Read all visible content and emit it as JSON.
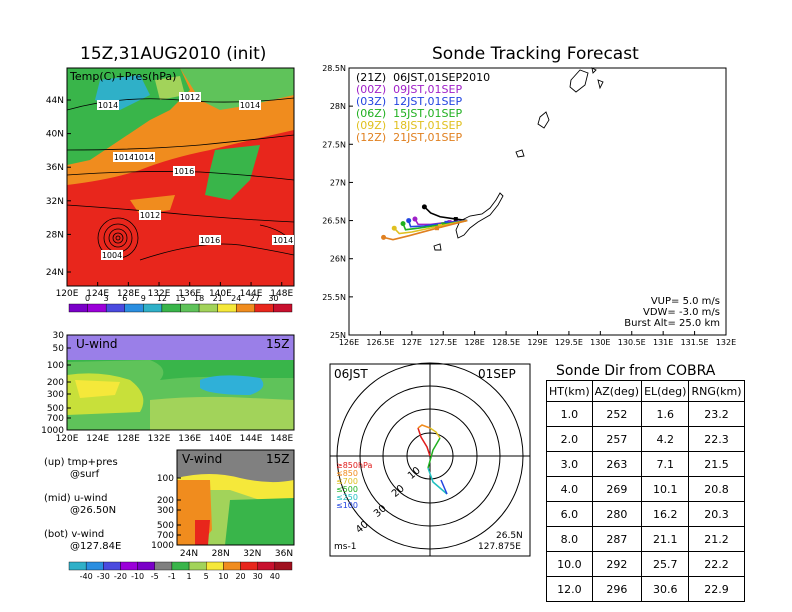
{
  "map_panel": {
    "title": "15Z,31AUG2010 (init)",
    "label": "Temp(C)+Pres(hPa)",
    "lat_ticks": [
      "44N",
      "40N",
      "36N",
      "32N",
      "28N",
      "24N"
    ],
    "lon_ticks": [
      "120E",
      "124E",
      "128E",
      "132E",
      "136E",
      "140E",
      "144E",
      "148E"
    ],
    "isobar_labels": [
      "1014",
      "1012",
      "1014",
      "1014",
      "1014",
      "1016",
      "1012",
      "1016",
      "1014",
      "1004"
    ],
    "colorbar_ticks": [
      "0",
      "3",
      "6",
      "9",
      "12",
      "15",
      "18",
      "21",
      "24",
      "27",
      "30"
    ],
    "colors": {
      "low": "#9b00d9",
      "mid": "#39b54a",
      "high": "#e8261c",
      "warm": "#f08c1e"
    }
  },
  "u_panel": {
    "label": "U-wind",
    "time": "15Z",
    "y_ticks": [
      "30",
      "50",
      "100",
      "200",
      "300",
      "500",
      "700",
      "1000"
    ],
    "x_ticks": [
      "120E",
      "124E",
      "128E",
      "132E",
      "136E",
      "140E",
      "144E",
      "148E"
    ]
  },
  "v_panel": {
    "label": "V-wind",
    "time": "15Z",
    "y_ticks": [
      "100",
      "200",
      "300",
      "500",
      "700",
      "1000"
    ],
    "x_ticks": [
      "24N",
      "28N",
      "32N",
      "36N"
    ],
    "colorbar_ticks": [
      "-40",
      "-30",
      "-20",
      "-10",
      "-5",
      "-1",
      "1",
      "5",
      "10",
      "20",
      "30",
      "40"
    ]
  },
  "notes": {
    "up_1": "(up) tmp+pres",
    "up_2": "@surf",
    "mid_1": "(mid) u-wind",
    "mid_2": "@26.50N",
    "bot_1": "(bot) v-wind",
    "bot_2": "@127.84E"
  },
  "track_panel": {
    "title": "Sonde Tracking Forecast",
    "y_ticks": [
      "28.5N",
      "28N",
      "27.5N",
      "27N",
      "26.5N",
      "26N",
      "25.5N",
      "25N"
    ],
    "x_ticks": [
      "126E",
      "126.5E",
      "127E",
      "127.5E",
      "128E",
      "128.5E",
      "129E",
      "129.5E",
      "130E",
      "130.5E",
      "131E",
      "131.5E",
      "132E"
    ],
    "legend": [
      {
        "text": "(21Z)  06JST,01SEP2010",
        "color": "#000000"
      },
      {
        "text": "(00Z)  09JST,01SEP",
        "color": "#a020c8"
      },
      {
        "text": "(03Z)  12JST,01SEP",
        "color": "#2244e0"
      },
      {
        "text": "(06Z)  15JST,01SEP",
        "color": "#20b020"
      },
      {
        "text": "(09Z)  18JST,01SEP",
        "color": "#e0c020"
      },
      {
        "text": "(12Z)  21JST,01SEP",
        "color": "#e08020"
      }
    ],
    "params": {
      "vup": "VUP=  5.0  m/s",
      "vdw": "VDW=  -3.0  m/s",
      "burst": "Burst Alt=  25.0  km"
    }
  },
  "polar_panel": {
    "time_label": "06JST",
    "date_label": "01SEP",
    "lat": "26.5N",
    "lon": "127.875E",
    "unit": "ms-1",
    "ring_labels": [
      "10",
      "20",
      "30",
      "40"
    ],
    "pressure_legend": [
      "≥850hPa",
      "≤850",
      "≤700",
      "≤500",
      "≤250",
      "≤100"
    ],
    "legend_colors": [
      "#e01c1c",
      "#f08c1e",
      "#e0c020",
      "#20b020",
      "#20c0c0",
      "#2244e0"
    ]
  },
  "cobra_table": {
    "title": "Sonde Dir from COBRA",
    "headers": [
      "HT(km)",
      "AZ(deg)",
      "EL(deg)",
      "RNG(km)"
    ],
    "rows": [
      [
        "1.0",
        "252",
        "1.6",
        "23.2"
      ],
      [
        "2.0",
        "257",
        "4.2",
        "22.3"
      ],
      [
        "3.0",
        "263",
        "7.1",
        "21.5"
      ],
      [
        "4.0",
        "269",
        "10.1",
        "20.8"
      ],
      [
        "6.0",
        "280",
        "16.2",
        "20.3"
      ],
      [
        "8.0",
        "287",
        "21.1",
        "21.2"
      ],
      [
        "10.0",
        "292",
        "25.7",
        "22.2"
      ],
      [
        "12.0",
        "296",
        "30.6",
        "22.9"
      ]
    ]
  },
  "chart_data": [
    {
      "type": "line",
      "title": "Sonde Tracking Forecast",
      "xlabel": "",
      "ylabel": "",
      "xlim": [
        126,
        132
      ],
      "ylim": [
        25,
        28.5
      ],
      "grid": false,
      "legend_position": "top-left",
      "series": [
        {
          "name": "(21Z)  06JST,01SEP2010",
          "x": [
            127.88,
            127.7,
            127.45,
            127.3,
            127.2
          ],
          "y": [
            26.5,
            26.52,
            26.55,
            26.6,
            26.68
          ]
        },
        {
          "name": "(00Z)  09JST,01SEP",
          "x": [
            127.88,
            127.6,
            127.3,
            127.1,
            127.05
          ],
          "y": [
            26.5,
            26.48,
            26.45,
            26.45,
            26.52
          ]
        },
        {
          "name": "(03Z)  12JST,01SEP",
          "x": [
            127.88,
            127.55,
            127.2,
            126.98,
            126.95
          ],
          "y": [
            26.5,
            26.47,
            26.43,
            26.42,
            26.5
          ]
        },
        {
          "name": "(06Z)  15JST,01SEP",
          "x": [
            127.88,
            127.5,
            127.1,
            126.9,
            126.86
          ],
          "y": [
            26.5,
            26.45,
            26.4,
            26.38,
            26.46
          ]
        },
        {
          "name": "(09Z)  18JST,01SEP",
          "x": [
            127.88,
            127.45,
            127.0,
            126.8,
            126.72
          ],
          "y": [
            26.5,
            26.43,
            26.35,
            26.33,
            26.4
          ]
        },
        {
          "name": "(12Z)  21JST,01SEP",
          "x": [
            127.88,
            127.4,
            126.95,
            126.7,
            126.55
          ],
          "y": [
            26.5,
            26.4,
            26.3,
            26.25,
            26.28
          ]
        }
      ]
    },
    {
      "type": "table",
      "title": "Sonde Dir from COBRA",
      "columns": [
        "HT(km)",
        "AZ(deg)",
        "EL(deg)",
        "RNG(km)"
      ],
      "rows": [
        [
          1.0,
          252,
          1.6,
          23.2
        ],
        [
          2.0,
          257,
          4.2,
          22.3
        ],
        [
          3.0,
          263,
          7.1,
          21.5
        ],
        [
          4.0,
          269,
          10.1,
          20.8
        ],
        [
          6.0,
          280,
          16.2,
          20.3
        ],
        [
          8.0,
          287,
          21.1,
          21.2
        ],
        [
          10.0,
          292,
          25.7,
          22.2
        ],
        [
          12.0,
          296,
          30.6,
          22.9
        ]
      ]
    }
  ]
}
